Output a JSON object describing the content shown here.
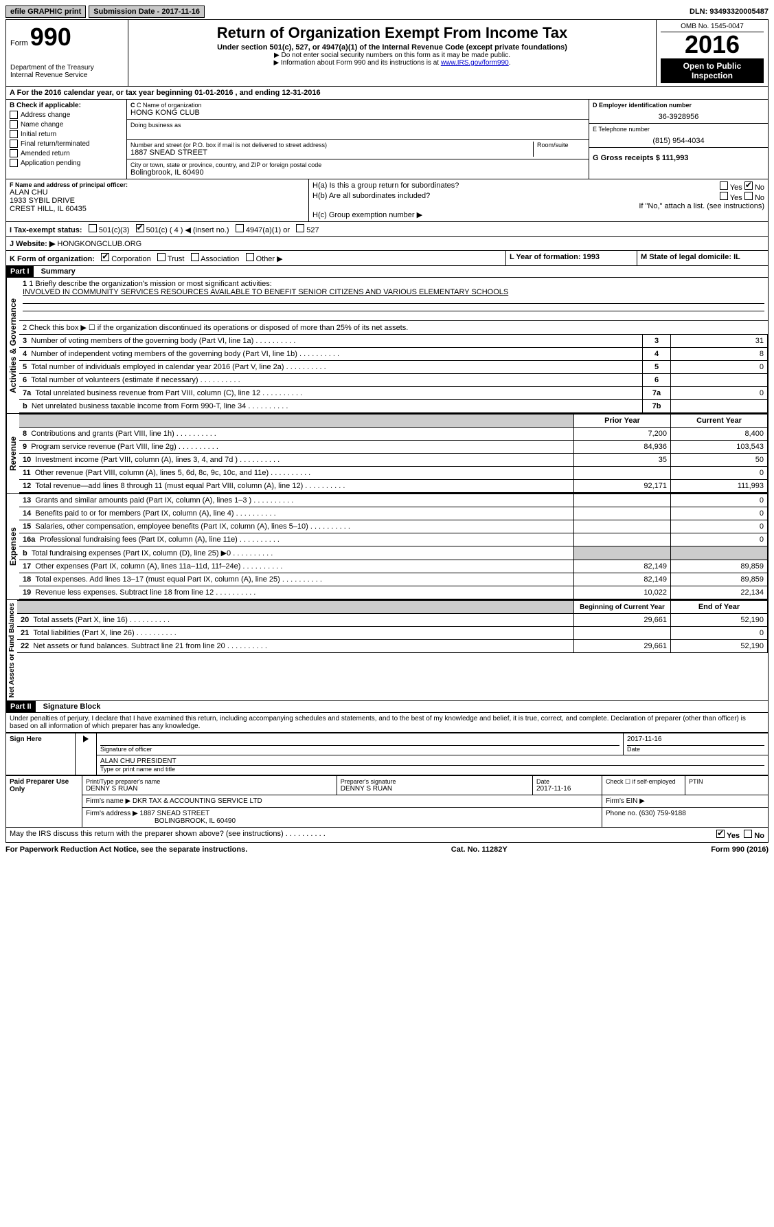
{
  "topbar": {
    "efile": "efile GRAPHIC print",
    "submission_label": "Submission Date - 2017-11-16",
    "dln": "DLN: 93493320005487"
  },
  "header": {
    "form_label": "Form",
    "form_num": "990",
    "dept": "Department of the Treasury",
    "irs": "Internal Revenue Service",
    "title": "Return of Organization Exempt From Income Tax",
    "subtitle": "Under section 501(c), 527, or 4947(a)(1) of the Internal Revenue Code (except private foundations)",
    "note1": "▶ Do not enter social security numbers on this form as it may be made public.",
    "note2": "▶ Information about Form 990 and its instructions is at ",
    "link": "www.IRS.gov/form990",
    "omb": "OMB No. 1545-0047",
    "year": "2016",
    "inspection": "Open to Public Inspection"
  },
  "sectionA": {
    "tax_year": "For the 2016 calendar year, or tax year beginning 01-01-2016   , and ending 12-31-2016",
    "b_label": "B Check if applicable:",
    "checks": [
      "Address change",
      "Name change",
      "Initial return",
      "Final return/terminated",
      "Amended return",
      "Application pending"
    ],
    "c_label": "C Name of organization",
    "org_name": "HONG KONG CLUB",
    "dba_label": "Doing business as",
    "street_label": "Number and street (or P.O. box if mail is not delivered to street address)",
    "room_label": "Room/suite",
    "street": "1887 SNEAD STREET",
    "city_label": "City or town, state or province, country, and ZIP or foreign postal code",
    "city": "Bolingbrook, IL  60490",
    "d_label": "D Employer identification number",
    "ein": "36-3928956",
    "e_label": "E Telephone number",
    "phone": "(815) 954-4034",
    "g_label": "G Gross receipts $ 111,993",
    "f_label": "F  Name and address of principal officer:",
    "officer_name": "ALAN CHU",
    "officer_addr1": "1933 SYBIL DRIVE",
    "officer_addr2": "CREST HILL, IL  60435",
    "ha": "H(a)  Is this a group return for subordinates?",
    "hb": "H(b)  Are all subordinates included?",
    "hb_note": "If \"No,\" attach a list. (see instructions)",
    "hc": "H(c)  Group exemption number ▶",
    "yes": "Yes",
    "no": "No",
    "i_label": "I  Tax-exempt status:",
    "i_501c3": "501(c)(3)",
    "i_501c": "501(c) ( 4 ) ◀ (insert no.)",
    "i_4947": "4947(a)(1) or",
    "i_527": "527",
    "j_label": "J  Website: ▶",
    "website": "HONGKONGCLUB.ORG",
    "k_label": "K Form of organization:",
    "k_corp": "Corporation",
    "k_trust": "Trust",
    "k_assoc": "Association",
    "k_other": "Other ▶",
    "l_label": "L Year of formation: 1993",
    "m_label": "M State of legal domicile: IL"
  },
  "part1": {
    "title": "Part I",
    "subtitle": "Summary",
    "gov_label": "Activities & Governance",
    "rev_label": "Revenue",
    "exp_label": "Expenses",
    "na_label": "Net Assets or Fund Balances",
    "line1_label": "1 Briefly describe the organization's mission or most significant activities:",
    "line1_text": "INVOLVED IN COMMUNITY SERVICES RESOURCES AVAILABLE TO BENEFIT SENIOR CITIZENS AND VARIOUS ELEMENTARY SCHOOLS",
    "line2": "2  Check this box ▶ ☐  if the organization discontinued its operations or disposed of more than 25% of its net assets.",
    "rows_gov": [
      {
        "n": "3",
        "label": "Number of voting members of the governing body (Part VI, line 1a)",
        "col": "3",
        "val": "31"
      },
      {
        "n": "4",
        "label": "Number of independent voting members of the governing body (Part VI, line 1b)",
        "col": "4",
        "val": "8"
      },
      {
        "n": "5",
        "label": "Total number of individuals employed in calendar year 2016 (Part V, line 2a)",
        "col": "5",
        "val": "0"
      },
      {
        "n": "6",
        "label": "Total number of volunteers (estimate if necessary)",
        "col": "6",
        "val": ""
      },
      {
        "n": "7a",
        "label": "Total unrelated business revenue from Part VIII, column (C), line 12",
        "col": "7a",
        "val": "0"
      },
      {
        "n": "b",
        "label": "Net unrelated business taxable income from Form 990-T, line 34",
        "col": "7b",
        "val": ""
      }
    ],
    "prior_year": "Prior Year",
    "current_year": "Current Year",
    "rows_rev": [
      {
        "n": "8",
        "label": "Contributions and grants (Part VIII, line 1h)",
        "py": "7,200",
        "cy": "8,400"
      },
      {
        "n": "9",
        "label": "Program service revenue (Part VIII, line 2g)",
        "py": "84,936",
        "cy": "103,543"
      },
      {
        "n": "10",
        "label": "Investment income (Part VIII, column (A), lines 3, 4, and 7d )",
        "py": "35",
        "cy": "50"
      },
      {
        "n": "11",
        "label": "Other revenue (Part VIII, column (A), lines 5, 6d, 8c, 9c, 10c, and 11e)",
        "py": "",
        "cy": "0"
      },
      {
        "n": "12",
        "label": "Total revenue—add lines 8 through 11 (must equal Part VIII, column (A), line 12)",
        "py": "92,171",
        "cy": "111,993"
      }
    ],
    "rows_exp": [
      {
        "n": "13",
        "label": "Grants and similar amounts paid (Part IX, column (A), lines 1–3 )",
        "py": "",
        "cy": "0"
      },
      {
        "n": "14",
        "label": "Benefits paid to or for members (Part IX, column (A), line 4)",
        "py": "",
        "cy": "0"
      },
      {
        "n": "15",
        "label": "Salaries, other compensation, employee benefits (Part IX, column (A), lines 5–10)",
        "py": "",
        "cy": "0"
      },
      {
        "n": "16a",
        "label": "Professional fundraising fees (Part IX, column (A), line 11e)",
        "py": "",
        "cy": "0"
      },
      {
        "n": "b",
        "label": "Total fundraising expenses (Part IX, column (D), line 25) ▶0",
        "py": "grey",
        "cy": "grey"
      },
      {
        "n": "17",
        "label": "Other expenses (Part IX, column (A), lines 11a–11d, 11f–24e)",
        "py": "82,149",
        "cy": "89,859"
      },
      {
        "n": "18",
        "label": "Total expenses. Add lines 13–17 (must equal Part IX, column (A), line 25)",
        "py": "82,149",
        "cy": "89,859"
      },
      {
        "n": "19",
        "label": "Revenue less expenses. Subtract line 18 from line 12",
        "py": "10,022",
        "cy": "22,134"
      }
    ],
    "bocy": "Beginning of Current Year",
    "eoy": "End of Year",
    "rows_na": [
      {
        "n": "20",
        "label": "Total assets (Part X, line 16)",
        "py": "29,661",
        "cy": "52,190"
      },
      {
        "n": "21",
        "label": "Total liabilities (Part X, line 26)",
        "py": "",
        "cy": "0"
      },
      {
        "n": "22",
        "label": "Net assets or fund balances. Subtract line 21 from line 20",
        "py": "29,661",
        "cy": "52,190"
      }
    ]
  },
  "part2": {
    "title": "Part II",
    "subtitle": "Signature Block",
    "declaration": "Under penalties of perjury, I declare that I have examined this return, including accompanying schedules and statements, and to the best of my knowledge and belief, it is true, correct, and complete. Declaration of preparer (other than officer) is based on all information of which preparer has any knowledge.",
    "sign_here": "Sign Here",
    "sig_officer": "Signature of officer",
    "sig_date": "2017-11-16",
    "date_label": "Date",
    "officer_print": "ALAN CHU PRESIDENT",
    "type_label": "Type or print name and title",
    "paid_label": "Paid Preparer Use Only",
    "prep_name_label": "Print/Type preparer's name",
    "prep_name": "DENNY S RUAN",
    "prep_sig_label": "Preparer's signature",
    "prep_sig": "DENNY S RUAN",
    "prep_date": "2017-11-16",
    "check_se": "Check ☐ if self-employed",
    "ptin": "PTIN",
    "firm_name_label": "Firm's name    ▶",
    "firm_name": "DKR TAX & ACCOUNTING SERVICE LTD",
    "firm_ein": "Firm's EIN ▶",
    "firm_addr_label": "Firm's address ▶",
    "firm_addr1": "1887 SNEAD STREET",
    "firm_addr2": "BOLINGBROOK, IL  60490",
    "firm_phone": "Phone no. (630) 759-9188",
    "discuss": "May the IRS discuss this return with the preparer shown above? (see instructions)"
  },
  "footer": {
    "pra": "For Paperwork Reduction Act Notice, see the separate instructions.",
    "cat": "Cat. No. 11282Y",
    "form": "Form 990 (2016)"
  }
}
